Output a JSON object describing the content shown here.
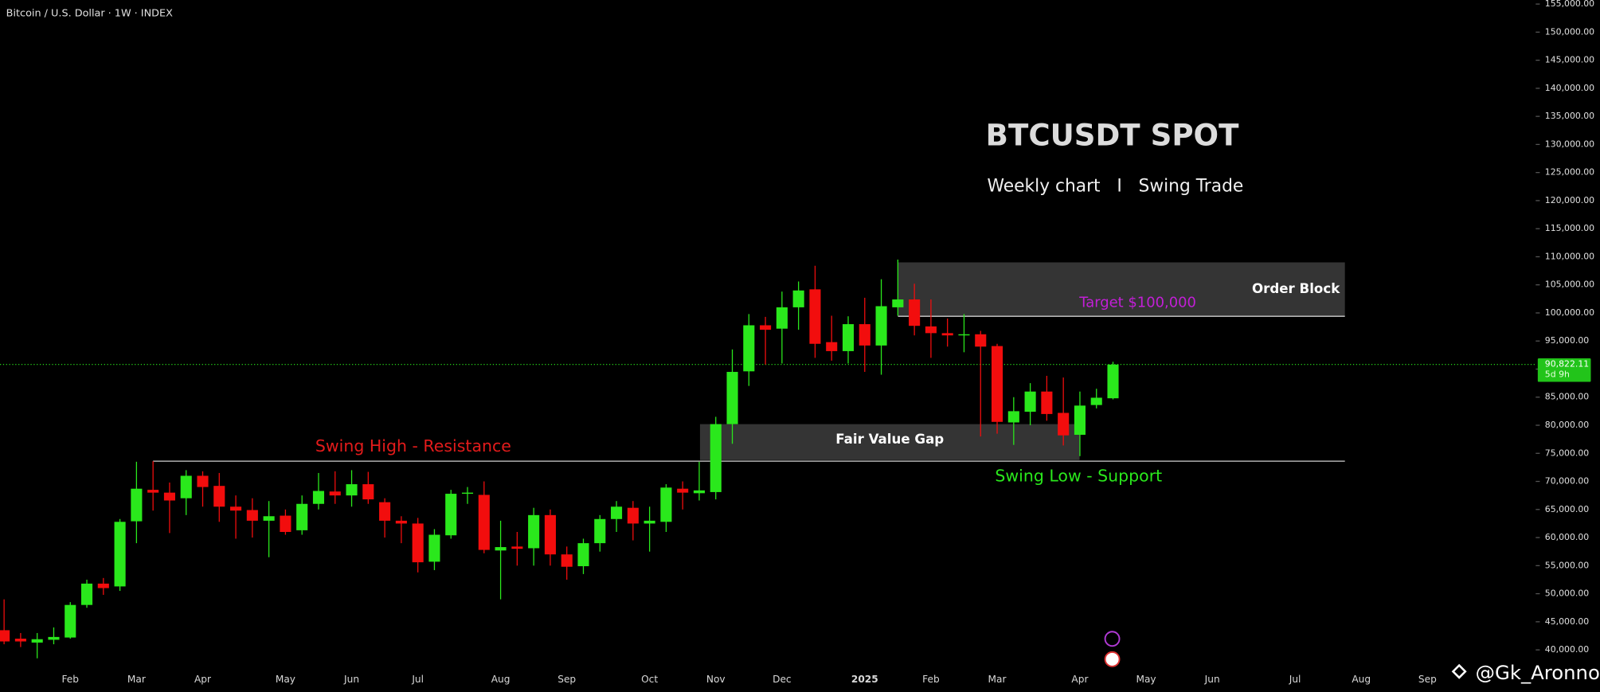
{
  "chart_data": {
    "type": "candlestick",
    "title": "Bitcoin / U.S. Dollar · 1W · INDEX",
    "headline": "BTCUSDT SPOT",
    "subheadline": "Weekly chart   I   Swing Trade",
    "categories": [
      null,
      null,
      null,
      null,
      "Feb",
      null,
      null,
      null,
      "Mar",
      null,
      null,
      null,
      "Apr",
      null,
      null,
      null,
      null,
      "May",
      null,
      null,
      null,
      "Jun",
      null,
      null,
      null,
      "Jul",
      null,
      null,
      null,
      null,
      "Aug",
      null,
      null,
      null,
      "Sep",
      null,
      null,
      null,
      null,
      "Oct",
      null,
      null,
      null,
      "Nov",
      null,
      null,
      null,
      "Dec",
      null,
      null,
      null,
      null,
      "2025",
      null,
      null,
      null,
      "Feb",
      null,
      null,
      null,
      "Mar",
      null,
      null,
      null,
      null,
      "Apr",
      null,
      null,
      null,
      "May",
      null,
      null,
      null,
      "Jun",
      null,
      null,
      null,
      null,
      "Jul",
      null,
      null,
      null,
      "Aug",
      null,
      null,
      null,
      "Sep",
      null,
      null,
      null,
      null,
      null
    ],
    "open": [
      43500,
      42000,
      41300,
      41800,
      42200,
      48000,
      51800,
      51300,
      62900,
      68500,
      68000,
      67000,
      71000,
      69200,
      65500,
      64900,
      63000,
      63900,
      61300,
      66000,
      68200,
      67500,
      69500,
      66300,
      63000,
      62500,
      55700,
      60400,
      67800,
      67600,
      57700,
      58400,
      58100,
      64000,
      57000,
      54900,
      59000,
      63300,
      65300,
      62500,
      62800,
      68700,
      67900,
      68100,
      80200,
      89600,
      97800,
      97200,
      101000,
      104200,
      94800,
      93200,
      98000,
      94200,
      101000,
      102400,
      97600,
      96400,
      96000,
      96200,
      94100,
      80500,
      82400,
      86000,
      82200,
      78300,
      83600,
      84800,
      null,
      null,
      null,
      null,
      null,
      null,
      null,
      null,
      null,
      null,
      null,
      null,
      null,
      null,
      null,
      null,
      null,
      null,
      null,
      null,
      null,
      null,
      null,
      null
    ],
    "high": [
      49000,
      43000,
      43000,
      44000,
      48500,
      52500,
      52800,
      63300,
      73500,
      73600,
      69800,
      72000,
      71800,
      71500,
      67500,
      67000,
      66500,
      65000,
      67500,
      71500,
      71800,
      72000,
      71700,
      67000,
      63800,
      63500,
      61500,
      68500,
      69000,
      70000,
      63000,
      61000,
      65300,
      65000,
      58400,
      59800,
      64000,
      66500,
      66500,
      65500,
      69500,
      70000,
      73500,
      81500,
      93500,
      99800,
      99300,
      103800,
      105600,
      108400,
      99500,
      99400,
      102700,
      106000,
      109500,
      105200,
      102400,
      99000,
      99800,
      96800,
      94500,
      85000,
      87500,
      88800,
      88500,
      86000,
      86500,
      91300,
      null,
      null,
      null,
      null,
      null,
      null,
      null,
      null,
      null,
      null,
      null,
      null,
      null,
      null,
      null,
      null,
      null,
      null,
      null,
      null,
      null,
      null,
      null,
      null
    ],
    "low": [
      41000,
      40500,
      38500,
      41000,
      42000,
      47500,
      49800,
      50500,
      59000,
      64800,
      60800,
      64000,
      65500,
      62800,
      59800,
      60000,
      56500,
      60500,
      60500,
      65000,
      66000,
      65500,
      66000,
      60000,
      59000,
      53800,
      54200,
      59800,
      66000,
      57200,
      49000,
      55000,
      55000,
      55000,
      52500,
      53500,
      57500,
      61000,
      59500,
      57500,
      61000,
      65000,
      66600,
      66800,
      76700,
      87000,
      90800,
      91000,
      97000,
      92000,
      91500,
      91000,
      89500,
      89000,
      99500,
      96000,
      92000,
      94000,
      93000,
      78000,
      78500,
      76500,
      80000,
      80800,
      76400,
      74500,
      83000,
      84600,
      null,
      null,
      null,
      null,
      null,
      null,
      null,
      null,
      null,
      null,
      null,
      null,
      null,
      null,
      null,
      null,
      null,
      null,
      null,
      null,
      null,
      null,
      null,
      null
    ],
    "close": [
      41500,
      41500,
      41900,
      42300,
      48000,
      51800,
      51000,
      62800,
      68700,
      68000,
      66600,
      71000,
      69000,
      65500,
      64800,
      63000,
      63800,
      61000,
      66000,
      68300,
      67500,
      69500,
      66800,
      63000,
      62500,
      55600,
      60500,
      67800,
      68000,
      57800,
      58300,
      58000,
      64000,
      57000,
      54800,
      59000,
      63300,
      65500,
      62500,
      63000,
      68900,
      68000,
      68400,
      80200,
      89500,
      97800,
      97000,
      101000,
      104000,
      94500,
      93200,
      98000,
      94200,
      101200,
      102400,
      97700,
      96400,
      96000,
      96200,
      94000,
      80600,
      82500,
      86000,
      82000,
      78200,
      83500,
      84900,
      90800,
      null,
      null,
      null,
      null,
      null,
      null,
      null,
      null,
      null,
      null,
      null,
      null,
      null,
      null,
      null,
      null,
      null,
      null,
      null,
      null,
      null,
      null,
      null,
      null
    ],
    "up_color": "#2ae81c",
    "down_color": "#f20d0d",
    "ylim": [
      36700,
      155700
    ],
    "yticks": [
      {
        "value": 40000,
        "label": "40,000.00"
      },
      {
        "value": 45000,
        "label": "45,000.00"
      },
      {
        "value": 50000,
        "label": "50,000.00"
      },
      {
        "value": 55000,
        "label": "55,000.00"
      },
      {
        "value": 60000,
        "label": "60,000.00"
      },
      {
        "value": 65000,
        "label": "65,000.00"
      },
      {
        "value": 70000,
        "label": "70,000.00"
      },
      {
        "value": 75000,
        "label": "75,000.00"
      },
      {
        "value": 80000,
        "label": "80,000.00"
      },
      {
        "value": 85000,
        "label": "85,000.00"
      },
      {
        "value": 90000,
        "label": "90,000.00"
      },
      {
        "value": 95000,
        "label": "95,000.00"
      },
      {
        "value": 100000,
        "label": "100,000.00"
      },
      {
        "value": 105000,
        "label": "105,000.00"
      },
      {
        "value": 110000,
        "label": "110,000.00"
      },
      {
        "value": 115000,
        "label": "115,000.00"
      },
      {
        "value": 120000,
        "label": "120,000.00"
      },
      {
        "value": 125000,
        "label": "125,000.00"
      },
      {
        "value": 130000,
        "label": "130,000.00"
      },
      {
        "value": 135000,
        "label": "135,000.00"
      },
      {
        "value": 140000,
        "label": "140,000.00"
      },
      {
        "value": 145000,
        "label": "145,000.00"
      },
      {
        "value": 150000,
        "label": "150,000.00"
      },
      {
        "value": 155000,
        "label": "155,000.00"
      }
    ],
    "zones": [
      {
        "label": "Order Block",
        "range": [
          99400,
          109000
        ]
      },
      {
        "label": "Fair Value Gap",
        "range": [
          73800,
          80200
        ]
      }
    ],
    "levels": [
      {
        "label": "Swing High - Resistance",
        "value": 73600,
        "color": "#e31b1b"
      },
      {
        "label": "Swing Low - Support",
        "value": 73600,
        "color": "#2ae81c"
      }
    ],
    "target": "Target $100,000",
    "last_price": {
      "value": 90822.11,
      "label": "90,822.11"
    },
    "countdown": "5d 9h",
    "watermark": "@Gk_Aronno"
  }
}
